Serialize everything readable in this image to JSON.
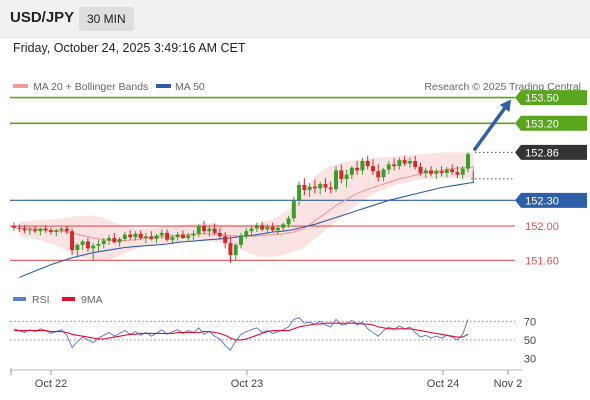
{
  "header": {
    "symbol": "USD/JPY",
    "timeframe": "30 MIN",
    "datetime": "Friday, October 24, 2025 3:49:16 AM CET"
  },
  "legend": {
    "ma20_label": "MA 20 + Bollinger Bands",
    "ma50_label": "MA 50",
    "ma20_color": "#f39a9a",
    "ma50_color": "#2e5fa8",
    "copyright": "Research © 2025 Trading Central"
  },
  "rsi_legend": {
    "rsi_label": "RSI",
    "ma_label": "9MA",
    "rsi_color": "#5b7fd6",
    "ma_color": "#e0102d"
  },
  "chart_data": {
    "type": "candlestick",
    "ylim": [
      151.37,
      153.53
    ],
    "levels": [
      {
        "value": 153.5,
        "label": "153.50",
        "kind": "target"
      },
      {
        "value": 153.2,
        "label": "153.20",
        "kind": "target"
      },
      {
        "value": 152.86,
        "label": "152.86",
        "kind": "current"
      },
      {
        "value": 152.3,
        "label": "152.30",
        "kind": "pivot"
      },
      {
        "value": 152.0,
        "label": "152.00",
        "kind": "support"
      },
      {
        "value": 151.6,
        "label": "151.60",
        "kind": "support"
      }
    ],
    "colors": {
      "target": "#5aa51e",
      "pivot": "#2e5fa8",
      "support": "#e05050",
      "current": "#333333",
      "up": "#3a9c2a",
      "down": "#d12a2a"
    },
    "x_ticks": [
      "Oct 22",
      "Oct 23",
      "Oct 24",
      "Nov 2"
    ],
    "candles": [
      [
        152.0,
        152.04,
        151.95,
        151.98
      ],
      [
        151.98,
        152.02,
        151.93,
        151.97
      ],
      [
        151.97,
        152.01,
        151.92,
        151.95
      ],
      [
        151.95,
        151.99,
        151.9,
        151.96
      ],
      [
        151.96,
        152.0,
        151.92,
        151.94
      ],
      [
        151.94,
        151.98,
        151.89,
        151.97
      ],
      [
        151.97,
        152.01,
        151.92,
        151.95
      ],
      [
        151.95,
        151.98,
        151.9,
        151.93
      ],
      [
        151.93,
        151.97,
        151.88,
        151.95
      ],
      [
        151.95,
        151.99,
        151.92,
        151.97
      ],
      [
        151.97,
        152.0,
        151.91,
        151.94
      ],
      [
        151.94,
        151.97,
        151.66,
        151.72
      ],
      [
        151.72,
        151.8,
        151.63,
        151.78
      ],
      [
        151.78,
        151.84,
        151.72,
        151.82
      ],
      [
        151.82,
        151.86,
        151.7,
        151.74
      ],
      [
        151.74,
        151.8,
        151.6,
        151.77
      ],
      [
        151.77,
        151.84,
        151.7,
        151.79
      ],
      [
        151.79,
        151.86,
        151.74,
        151.83
      ],
      [
        151.83,
        151.9,
        151.78,
        151.86
      ],
      [
        151.86,
        151.92,
        151.8,
        151.81
      ],
      [
        151.81,
        151.87,
        151.76,
        151.85
      ],
      [
        151.85,
        151.93,
        151.82,
        151.9
      ],
      [
        151.9,
        151.95,
        151.84,
        151.87
      ],
      [
        151.87,
        151.94,
        151.83,
        151.91
      ],
      [
        151.91,
        151.95,
        151.84,
        151.86
      ],
      [
        151.86,
        151.92,
        151.8,
        151.88
      ],
      [
        151.88,
        151.94,
        151.83,
        151.85
      ],
      [
        151.85,
        151.91,
        151.8,
        151.89
      ],
      [
        151.89,
        151.96,
        151.85,
        151.92
      ],
      [
        151.92,
        151.96,
        151.82,
        151.84
      ],
      [
        151.84,
        151.9,
        151.79,
        151.87
      ],
      [
        151.87,
        151.93,
        151.83,
        151.9
      ],
      [
        151.9,
        151.95,
        151.85,
        151.86
      ],
      [
        151.86,
        151.92,
        151.82,
        151.89
      ],
      [
        151.89,
        151.95,
        151.84,
        151.91
      ],
      [
        151.91,
        152.02,
        151.87,
        152.0
      ],
      [
        152.0,
        152.06,
        151.91,
        151.94
      ],
      [
        151.94,
        152.01,
        151.88,
        151.97
      ],
      [
        151.97,
        152.03,
        151.9,
        151.92
      ],
      [
        151.92,
        151.98,
        151.85,
        151.88
      ],
      [
        151.88,
        151.93,
        151.74,
        151.8
      ],
      [
        151.8,
        151.88,
        151.57,
        151.66
      ],
      [
        151.66,
        151.8,
        151.6,
        151.78
      ],
      [
        151.78,
        151.92,
        151.74,
        151.89
      ],
      [
        151.89,
        151.98,
        151.85,
        151.94
      ],
      [
        151.94,
        152.0,
        151.89,
        151.97
      ],
      [
        151.97,
        152.04,
        151.93,
        152.01
      ],
      [
        152.01,
        152.05,
        151.94,
        151.96
      ],
      [
        151.96,
        152.02,
        151.91,
        151.99
      ],
      [
        151.99,
        152.04,
        151.93,
        151.95
      ],
      [
        151.95,
        152.01,
        151.9,
        151.98
      ],
      [
        151.98,
        152.04,
        151.94,
        152.02
      ],
      [
        152.02,
        152.12,
        151.98,
        152.09
      ],
      [
        152.09,
        152.34,
        152.05,
        152.3
      ],
      [
        152.3,
        152.52,
        152.24,
        152.48
      ],
      [
        152.48,
        152.56,
        152.36,
        152.42
      ],
      [
        152.42,
        152.5,
        152.34,
        152.46
      ],
      [
        152.46,
        152.54,
        152.38,
        152.44
      ],
      [
        152.44,
        152.52,
        152.37,
        152.49
      ],
      [
        152.49,
        152.56,
        152.4,
        152.45
      ],
      [
        152.45,
        152.52,
        152.38,
        152.43
      ],
      [
        152.43,
        152.7,
        152.4,
        152.65
      ],
      [
        152.65,
        152.72,
        152.5,
        152.55
      ],
      [
        152.55,
        152.66,
        152.45,
        152.6
      ],
      [
        152.6,
        152.7,
        152.55,
        152.68
      ],
      [
        152.68,
        152.76,
        152.6,
        152.65
      ],
      [
        152.65,
        152.8,
        152.6,
        152.76
      ],
      [
        152.76,
        152.82,
        152.66,
        152.7
      ],
      [
        152.7,
        152.78,
        152.6,
        152.64
      ],
      [
        152.64,
        152.72,
        152.52,
        152.57
      ],
      [
        152.57,
        152.68,
        152.52,
        152.66
      ],
      [
        152.66,
        152.76,
        152.61,
        152.72
      ],
      [
        152.72,
        152.79,
        152.65,
        152.7
      ],
      [
        152.7,
        152.8,
        152.66,
        152.77
      ],
      [
        152.77,
        152.82,
        152.7,
        152.73
      ],
      [
        152.73,
        152.8,
        152.68,
        152.76
      ],
      [
        152.76,
        152.82,
        152.66,
        152.69
      ],
      [
        152.69,
        152.74,
        152.59,
        152.62
      ],
      [
        152.62,
        152.68,
        152.56,
        152.65
      ],
      [
        152.65,
        152.7,
        152.58,
        152.61
      ],
      [
        152.61,
        152.67,
        152.55,
        152.64
      ],
      [
        152.64,
        152.7,
        152.58,
        152.62
      ],
      [
        152.62,
        152.69,
        152.57,
        152.66
      ],
      [
        152.66,
        152.72,
        152.6,
        152.63
      ],
      [
        152.63,
        152.7,
        152.56,
        152.6
      ],
      [
        152.6,
        152.7,
        152.55,
        152.67
      ],
      [
        152.67,
        152.86,
        152.63,
        152.84
      ]
    ],
    "ma20": [
      151.98,
      151.97,
      151.96,
      151.95,
      151.94,
      151.92,
      151.89,
      151.86,
      151.84,
      151.83,
      151.83,
      151.84,
      151.86,
      151.87,
      151.88,
      151.89,
      151.9,
      151.91,
      151.91,
      151.9,
      151.89,
      151.88,
      151.88,
      151.89,
      151.9,
      151.91,
      151.93,
      151.97,
      152.06,
      152.15,
      152.24,
      152.31,
      152.38,
      152.43,
      152.47,
      152.51,
      152.55,
      152.58,
      152.61,
      152.63,
      152.65,
      152.67,
      152.68,
      152.69,
      152.7,
      152.7,
      152.69,
      152.68,
      152.67,
      152.66,
      152.65,
      152.64,
      152.64,
      152.65,
      152.67
    ],
    "bb_upper": [
      152.05,
      152.06,
      152.07,
      152.08,
      152.09,
      152.11,
      152.12,
      152.12,
      152.1,
      152.04,
      152.0,
      151.97,
      151.97,
      151.98,
      152.0,
      152.01,
      152.02,
      152.03,
      152.03,
      152.02,
      152.02,
      152.01,
      152.02,
      152.04,
      152.08,
      152.15,
      152.25,
      152.4,
      152.58,
      152.68,
      152.72,
      152.75,
      152.77,
      152.78,
      152.8,
      152.81,
      152.82,
      152.83,
      152.84,
      152.85,
      152.86,
      152.86,
      152.86,
      152.86,
      152.85,
      152.84,
      152.82,
      152.8,
      152.78,
      152.76,
      152.75,
      152.74,
      152.74,
      152.76,
      152.8
    ],
    "bb_lower": [
      151.88,
      151.86,
      151.83,
      151.79,
      151.74,
      151.68,
      151.63,
      151.6,
      151.6,
      151.63,
      151.68,
      151.73,
      151.77,
      151.79,
      151.8,
      151.81,
      151.81,
      151.82,
      151.82,
      151.81,
      151.78,
      151.73,
      151.67,
      151.64,
      151.64,
      151.66,
      151.7,
      151.75,
      151.85,
      151.95,
      152.05,
      152.15,
      152.25,
      152.33,
      152.4,
      152.45,
      152.49,
      152.52,
      152.54,
      152.55,
      152.56,
      152.56,
      152.56,
      152.56,
      152.56,
      152.56,
      152.55,
      152.54,
      152.53,
      152.53,
      152.52,
      152.52,
      152.52,
      152.52,
      152.53
    ],
    "ma50": [
      151.4,
      151.45,
      151.5,
      151.55,
      151.59,
      151.63,
      151.66,
      151.69,
      151.71,
      151.73,
      151.75,
      151.76,
      151.77,
      151.78,
      151.79,
      151.81,
      151.82,
      151.83,
      151.84,
      151.85,
      151.86,
      151.88,
      151.89,
      151.91,
      151.93,
      151.94,
      151.96,
      151.99,
      152.02,
      152.06,
      152.1,
      152.14,
      152.18,
      152.22,
      152.26,
      152.3,
      152.33,
      152.36,
      152.39,
      152.42,
      152.45,
      152.47,
      152.49,
      152.51,
      152.53,
      152.55,
      152.56,
      152.58,
      152.59,
      152.6,
      152.61,
      152.62,
      152.62,
      152.63,
      152.64
    ],
    "rsi": {
      "ylim": [
        22,
        80
      ],
      "levels": [
        70,
        50,
        30
      ],
      "rsi": [
        62,
        60,
        58,
        61,
        59,
        62,
        60,
        57,
        59,
        61,
        55,
        42,
        48,
        53,
        50,
        47,
        52,
        55,
        58,
        54,
        57,
        60,
        56,
        59,
        55,
        58,
        54,
        57,
        61,
        56,
        59,
        61,
        57,
        60,
        58,
        63,
        56,
        59,
        54,
        51,
        44,
        39,
        49,
        56,
        59,
        61,
        63,
        58,
        60,
        57,
        59,
        61,
        64,
        72,
        74,
        68,
        69,
        67,
        70,
        66,
        64,
        72,
        66,
        67,
        71,
        66,
        69,
        62,
        58,
        54,
        60,
        64,
        61,
        65,
        62,
        64,
        58,
        53,
        55,
        52,
        54,
        52,
        55,
        53,
        50,
        56,
        72
      ],
      "ma9": [
        60,
        60,
        60,
        60,
        60,
        60,
        60,
        59,
        59,
        59,
        58,
        56,
        55,
        54,
        53,
        52,
        51,
        51,
        52,
        53,
        54,
        55,
        56,
        56,
        57,
        57,
        57,
        57,
        57,
        57,
        57,
        58,
        58,
        58,
        58,
        58,
        59,
        59,
        58,
        57,
        55,
        52,
        50,
        50,
        51,
        53,
        55,
        57,
        59,
        60,
        60,
        60,
        60,
        62,
        64,
        65,
        66,
        67,
        67,
        68,
        68,
        68,
        68,
        68,
        68,
        68,
        67,
        67,
        66,
        64,
        63,
        62,
        62,
        62,
        62,
        62,
        61,
        60,
        59,
        58,
        57,
        56,
        55,
        54,
        53,
        53,
        56
      ]
    }
  }
}
